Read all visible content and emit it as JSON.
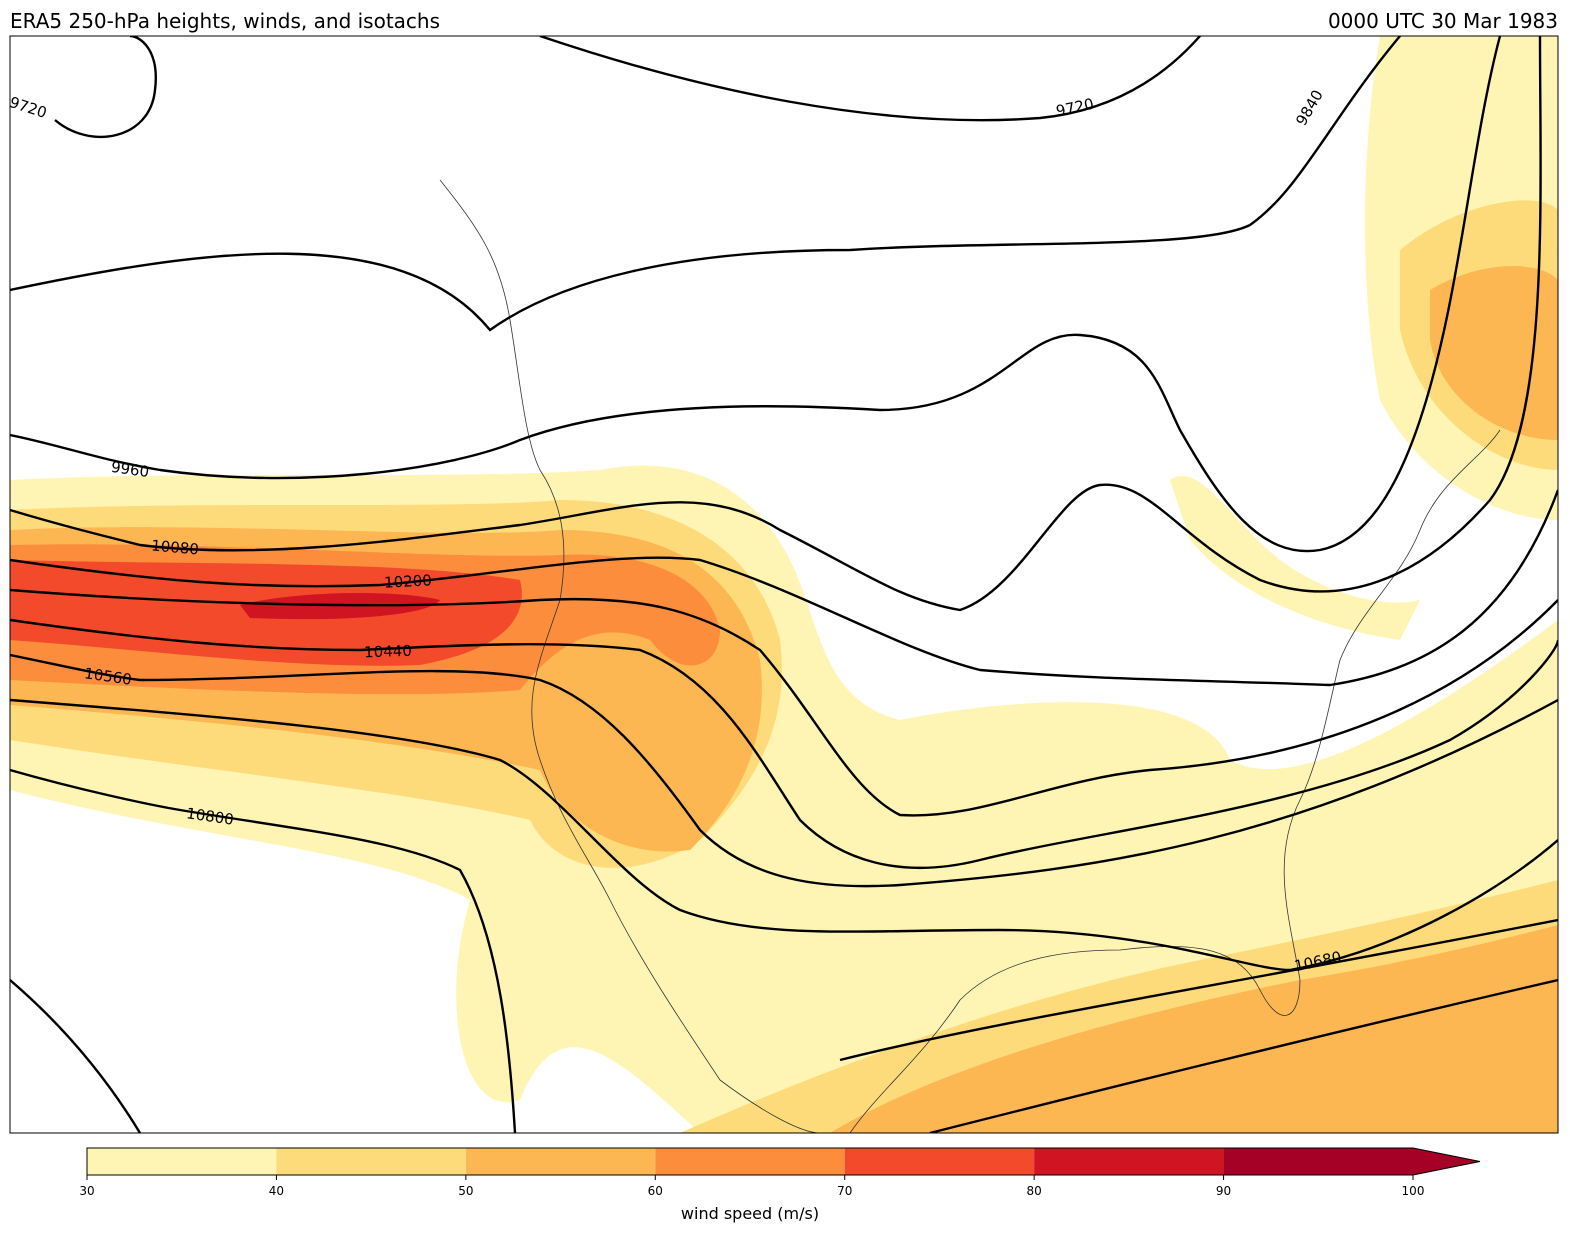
{
  "title": "ERA5 250-hPa heights, winds, and isotachs",
  "valid_time": "0000 UTC 30 Mar 1983",
  "contour_labels": [
    9720,
    9720,
    9840,
    9960,
    10080,
    10200,
    10440,
    10560,
    10800,
    10680
  ],
  "colorbar": {
    "ticks": [
      30,
      40,
      50,
      60,
      70,
      80,
      90,
      100
    ],
    "colors": [
      "#fef5b5",
      "#fedb7a",
      "#fdb752",
      "#fc8d3c",
      "#f24a2a",
      "#d11421",
      "#a50026"
    ],
    "extend": "max",
    "label": "wind speed (m/s)"
  }
}
